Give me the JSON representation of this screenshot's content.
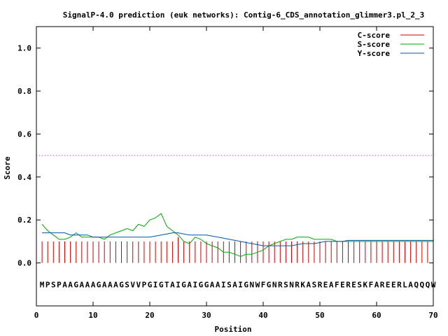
{
  "chart_data": {
    "type": "line",
    "title": "SignalP-4.0 prediction (euk networks): Contig-6_CDS_annotation_glimmer3.pl_2_3",
    "xlabel": "Position",
    "ylabel": "Score",
    "xlim": [
      0,
      70
    ],
    "ylim": [
      -0.2,
      1.1
    ],
    "xticks": [
      "0",
      "10",
      "20",
      "30",
      "40",
      "50",
      "60",
      "70"
    ],
    "yticks": [
      "0.0",
      "0.2",
      "0.4",
      "0.6",
      "0.8",
      "1.0"
    ],
    "grid": false,
    "legend_position": "top-right",
    "threshold": {
      "y": 0.5,
      "color": "#cc33cc"
    },
    "sequence": "MPSPAAGAAAGAAAGSVVPGIGTAIGAIGGAAISAIGNWFGNRSNRKASREAFERESKFAREERLAQQQW",
    "series": [
      {
        "name": "C-score",
        "color": "#cc0000",
        "style": "impulse",
        "x": [
          1,
          2,
          3,
          4,
          5,
          6,
          7,
          8,
          9,
          10,
          11,
          12,
          13,
          14,
          15,
          16,
          17,
          18,
          19,
          20,
          21,
          22,
          23,
          24,
          25,
          26,
          27,
          28,
          29,
          30,
          31,
          32,
          33,
          34,
          35,
          36,
          37,
          38,
          39,
          40,
          41,
          42,
          43,
          44,
          45,
          46,
          47,
          48,
          49,
          50,
          51,
          52,
          53,
          54,
          55,
          56,
          57,
          58,
          59,
          60,
          61,
          62,
          63,
          64,
          65,
          66,
          67,
          68,
          69,
          70
        ],
        "values": [
          0.1,
          0.1,
          0.1,
          0.1,
          0.1,
          0.1,
          0.1,
          0.1,
          0.1,
          0.1,
          0.1,
          0.1,
          0.1,
          0.1,
          0.1,
          0.1,
          0.1,
          0.1,
          0.1,
          0.1,
          0.1,
          0.1,
          0.1,
          0.1,
          0.12,
          0.1,
          0.1,
          0.1,
          0.1,
          0.1,
          0.1,
          0.1,
          0.1,
          0.1,
          0.1,
          0.1,
          0.1,
          0.1,
          0.1,
          0.1,
          0.1,
          0.1,
          0.1,
          0.1,
          0.1,
          0.1,
          0.1,
          0.1,
          0.1,
          0.1,
          0.1,
          0.1,
          0.1,
          0.1,
          0.1,
          0.1,
          0.1,
          0.1,
          0.1,
          0.1,
          0.1,
          0.1,
          0.1,
          0.1,
          0.1,
          0.1,
          0.1,
          0.1,
          0.1,
          0.1
        ]
      },
      {
        "name": "S-score",
        "color": "#00aa00",
        "style": "line",
        "x": [
          1,
          2,
          3,
          4,
          5,
          6,
          7,
          8,
          9,
          10,
          11,
          12,
          13,
          14,
          15,
          16,
          17,
          18,
          19,
          20,
          21,
          22,
          23,
          24,
          25,
          26,
          27,
          28,
          29,
          30,
          31,
          32,
          33,
          34,
          35,
          36,
          37,
          38,
          39,
          40,
          41,
          42,
          43,
          44,
          45,
          46,
          47,
          48,
          49,
          50,
          51,
          52,
          53,
          54,
          55,
          56,
          57,
          58,
          59,
          60,
          61,
          62,
          63,
          64,
          65,
          66,
          67,
          68,
          69,
          70
        ],
        "values": [
          0.18,
          0.15,
          0.13,
          0.11,
          0.11,
          0.12,
          0.14,
          0.12,
          0.12,
          0.12,
          0.12,
          0.11,
          0.13,
          0.14,
          0.15,
          0.16,
          0.15,
          0.18,
          0.17,
          0.2,
          0.21,
          0.23,
          0.17,
          0.15,
          0.13,
          0.1,
          0.09,
          0.12,
          0.11,
          0.09,
          0.08,
          0.07,
          0.05,
          0.05,
          0.04,
          0.03,
          0.04,
          0.04,
          0.05,
          0.06,
          0.08,
          0.09,
          0.1,
          0.11,
          0.11,
          0.12,
          0.12,
          0.12,
          0.11,
          0.11,
          0.11,
          0.11,
          0.1,
          0.1,
          0.1,
          0.1,
          0.1,
          0.1,
          0.1,
          0.1,
          0.1,
          0.1,
          0.1,
          0.1,
          0.1,
          0.1,
          0.1,
          0.1,
          0.1,
          0.1
        ]
      },
      {
        "name": "Y-score",
        "color": "#0055aa",
        "style": "line",
        "x": [
          1,
          2,
          3,
          4,
          5,
          6,
          7,
          8,
          9,
          10,
          11,
          12,
          13,
          14,
          15,
          16,
          17,
          18,
          19,
          20,
          21,
          22,
          23,
          24,
          25,
          26,
          27,
          28,
          29,
          30,
          31,
          32,
          33,
          34,
          35,
          36,
          37,
          38,
          39,
          40,
          41,
          42,
          43,
          44,
          45,
          46,
          47,
          48,
          49,
          50,
          51,
          52,
          53,
          54,
          55,
          56,
          57,
          58,
          59,
          60,
          61,
          62,
          63,
          64,
          65,
          66,
          67,
          68,
          69,
          70
        ],
        "values": [
          0.14,
          0.14,
          0.14,
          0.14,
          0.14,
          0.13,
          0.13,
          0.13,
          0.13,
          0.12,
          0.12,
          0.12,
          0.12,
          0.12,
          0.12,
          0.12,
          0.12,
          0.12,
          0.12,
          0.12,
          0.125,
          0.13,
          0.135,
          0.14,
          0.14,
          0.135,
          0.13,
          0.13,
          0.13,
          0.13,
          0.125,
          0.12,
          0.115,
          0.11,
          0.105,
          0.1,
          0.095,
          0.09,
          0.085,
          0.08,
          0.08,
          0.08,
          0.08,
          0.08,
          0.08,
          0.085,
          0.09,
          0.09,
          0.09,
          0.095,
          0.1,
          0.1,
          0.1,
          0.1,
          0.105,
          0.105,
          0.105,
          0.105,
          0.105,
          0.105,
          0.105,
          0.105,
          0.105,
          0.105,
          0.105,
          0.105,
          0.105,
          0.105,
          0.105,
          0.105
        ]
      }
    ]
  }
}
